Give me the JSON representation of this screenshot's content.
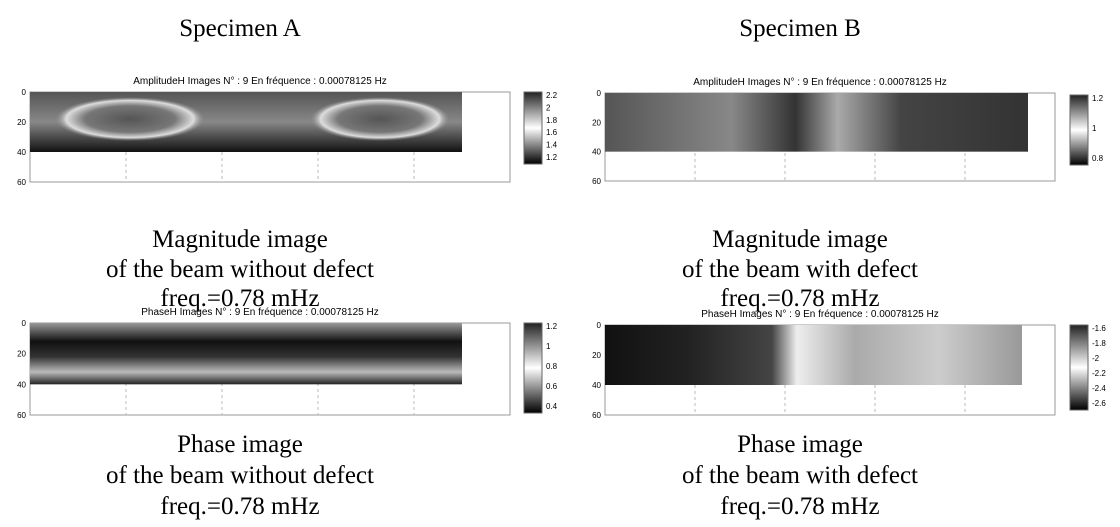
{
  "columns": [
    {
      "heading": "Specimen A",
      "panels": [
        {
          "title": "AmplitudeH Images N° : 9 En fréquence : 0.00078125 Hz",
          "y_ticks": [
            "0",
            "20",
            "40",
            "60"
          ],
          "colorbar_ticks": [
            "2.2",
            "2",
            "1.8",
            "1.6",
            "1.4",
            "1.2"
          ],
          "caption": [
            "Magnitude image",
            "of the beam without defect",
            "freq.=0.78 mHz"
          ]
        },
        {
          "title": "PhaseH Images N° : 9 En fréquence : 0.00078125 Hz",
          "y_ticks": [
            "0",
            "20",
            "40",
            "60"
          ],
          "colorbar_ticks": [
            "1.2",
            "1",
            "0.8",
            "0.6",
            "0.4"
          ],
          "caption": [
            "Phase image",
            "of the beam without defect",
            "freq.=0.78 mHz"
          ]
        }
      ]
    },
    {
      "heading": "Specimen B",
      "panels": [
        {
          "title": "AmplitudeH Images N° : 9 En fréquence : 0.00078125 Hz",
          "y_ticks": [
            "0",
            "20",
            "40",
            "60"
          ],
          "colorbar_ticks": [
            "1.2",
            "1",
            "0.8"
          ],
          "caption": [
            "Magnitude image",
            "of the beam with defect",
            "freq.=0.78 mHz"
          ]
        },
        {
          "title": "PhaseH Images N° : 9 En fréquence : 0.00078125 Hz",
          "y_ticks": [
            "0",
            "20",
            "40",
            "60"
          ],
          "colorbar_ticks": [
            "-1.6",
            "-1.8",
            "-2",
            "-2.2",
            "-2.4",
            "-2.6"
          ],
          "caption": [
            "Phase image",
            "of the beam with defect",
            "freq.=0.78 mHz"
          ]
        }
      ]
    }
  ]
}
